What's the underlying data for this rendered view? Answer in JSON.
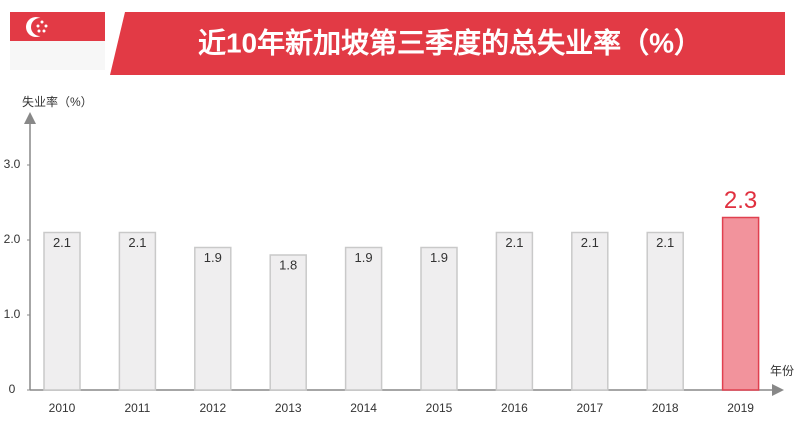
{
  "chart_data": {
    "type": "bar",
    "title": "近10年新加坡第三季度的总失业率（%）",
    "y_label": "失业率（%）",
    "x_label": "年份",
    "categories": [
      "2010",
      "2011",
      "2012",
      "2013",
      "2014",
      "2015",
      "2016",
      "2017",
      "2018",
      "2019"
    ],
    "values": [
      2.1,
      2.1,
      1.9,
      1.8,
      1.9,
      1.9,
      2.1,
      2.1,
      2.1,
      2.3
    ],
    "colors": [
      "#efeeef",
      "#efeeef",
      "#efeeef",
      "#efeeef",
      "#efeeef",
      "#efeeef",
      "#efeeef",
      "#efeeef",
      "#efeeef",
      "#f2939c"
    ],
    "edge_colors": [
      "#c9c9c9",
      "#c9c9c9",
      "#c9c9c9",
      "#c9c9c9",
      "#c9c9c9",
      "#c9c9c9",
      "#c9c9c9",
      "#c9c9c9",
      "#c9c9c9",
      "#e0404f"
    ],
    "label_colors": [
      "#333333",
      "#333333",
      "#333333",
      "#333333",
      "#333333",
      "#333333",
      "#333333",
      "#333333",
      "#333333",
      "#e0303f"
    ],
    "ylim": [
      0,
      3.9
    ],
    "yticks": [
      0,
      {
        "value": 1,
        "label": "1.0"
      },
      {
        "value": 2,
        "label": "2.0"
      },
      {
        "value": 3,
        "label": "3.0"
      }
    ],
    "grid": false
  }
}
